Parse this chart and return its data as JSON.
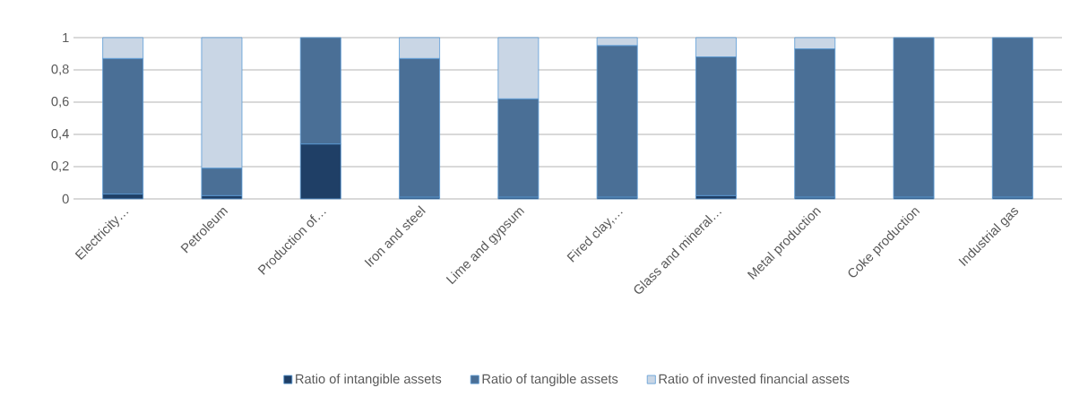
{
  "chart_data": {
    "type": "bar",
    "stacked": true,
    "categories": [
      "Electricity…",
      "Petroleum",
      "Production of…",
      "Iron and steel",
      "Lime and gypsum",
      "Fired clay,…",
      "Glass and mineral…",
      "Metal production",
      "Coke production",
      "Industrial gas"
    ],
    "series": [
      {
        "name": "Ratio of intangible assets",
        "color": "#1f3f66",
        "values": [
          0.03,
          0.02,
          0.34,
          0.01,
          0.01,
          0.01,
          0.02,
          0.01,
          0.01,
          0.01
        ]
      },
      {
        "name": "Ratio of tangible assets",
        "color": "#4a6f96",
        "values": [
          0.84,
          0.17,
          0.66,
          0.86,
          0.61,
          0.94,
          0.86,
          0.92,
          0.99,
          0.99
        ]
      },
      {
        "name": "Ratio of invested financial assets",
        "color": "#c9d6e5",
        "values": [
          0.13,
          0.81,
          0,
          0.13,
          0.38,
          0.05,
          0.12,
          0.07,
          0,
          0
        ]
      }
    ],
    "ylim": [
      0,
      1
    ],
    "yticks": [
      {
        "value": 0,
        "label": "0"
      },
      {
        "value": 0.2,
        "label": "0,2"
      },
      {
        "value": 0.4,
        "label": "0,4"
      },
      {
        "value": 0.6,
        "label": "0,6"
      },
      {
        "value": 0.8,
        "label": "0,8"
      },
      {
        "value": 1,
        "label": "1"
      }
    ],
    "grid": "y",
    "legend": "bottom"
  }
}
